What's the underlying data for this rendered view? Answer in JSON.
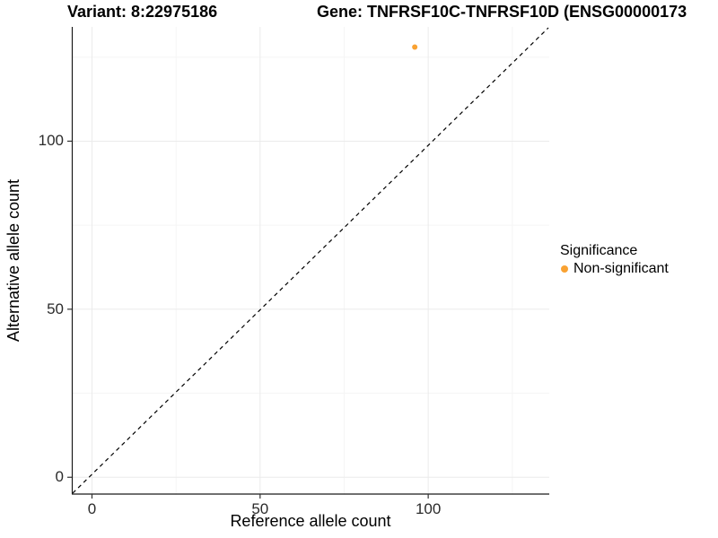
{
  "titles": {
    "variant": "Variant: 8:22975186",
    "gene": "Gene: TNFRSF10C-TNFRSF10D (ENSG00000173"
  },
  "chart_data": {
    "type": "scatter",
    "title": "Variant: 8:22975186 | Gene: TNFRSF10C-TNFRSF10D",
    "xlabel": "Reference allele count",
    "ylabel": "Alternative allele count",
    "x_ticks": [
      0,
      50,
      100
    ],
    "y_ticks": [
      0,
      50,
      100
    ],
    "x_minor_ticks": [
      25,
      75,
      125
    ],
    "y_minor_ticks": [
      25,
      75,
      125
    ],
    "xlim": [
      -6,
      136
    ],
    "ylim": [
      -5,
      134
    ],
    "grid": true,
    "identity_line": {
      "style": "dashed",
      "color": "#000000",
      "slope": 1,
      "intercept": 0
    },
    "series": [
      {
        "name": "Non-significant",
        "color": "#F9A232",
        "points": [
          {
            "x": 96,
            "y": 128
          }
        ]
      }
    ],
    "legend": {
      "title": "Significance",
      "position": "right",
      "items": [
        {
          "label": "Non-significant",
          "color": "#F9A232"
        }
      ]
    },
    "colors": {
      "major_grid": "#EBEBEB",
      "minor_grid": "#F5F5F5",
      "axis_line": "#1a1a1a",
      "tick_mark": "#333333"
    }
  }
}
